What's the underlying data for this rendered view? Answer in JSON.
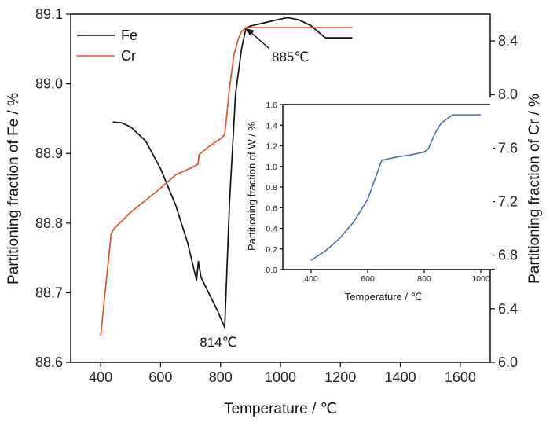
{
  "chart_data": [
    {
      "type": "line",
      "xlabel": "Temperature / ℃",
      "ylabel_left": "Partitioning fraction of Fe / %",
      "ylabel_right": "Partitioning fraction of Cr / %",
      "xlim": [
        300,
        1700
      ],
      "xticks": [
        400,
        600,
        800,
        1000,
        1200,
        1400,
        1600
      ],
      "ylim_left": [
        88.6,
        89.1
      ],
      "yticks_left": [
        88.6,
        88.7,
        88.8,
        88.9,
        89.0,
        89.1
      ],
      "ylim_right": [
        6.0,
        8.6
      ],
      "yticks_right": [
        6.0,
        6.4,
        6.8,
        7.2,
        7.6,
        8.0,
        8.4
      ],
      "legend_position": "top-left",
      "series": [
        {
          "name": "Fe",
          "axis": "left",
          "color": "#111111",
          "x": [
            440,
            470,
            500,
            550,
            600,
            650,
            690,
            720,
            726,
            735,
            760,
            790,
            814,
            830,
            850,
            870,
            885,
            900,
            950,
            1000,
            1025,
            1060,
            1100,
            1150,
            1240
          ],
          "y": [
            88.945,
            88.944,
            88.938,
            88.918,
            88.878,
            88.826,
            88.772,
            88.718,
            88.745,
            88.722,
            88.7,
            88.674,
            88.65,
            88.83,
            88.985,
            89.05,
            89.08,
            89.083,
            89.088,
            89.093,
            89.095,
            89.092,
            89.084,
            89.066,
            89.066
          ]
        },
        {
          "name": "Cr",
          "axis": "right",
          "color": "#E8512C",
          "x": [
            400,
            435,
            445,
            500,
            600,
            650,
            700,
            725,
            728,
            760,
            800,
            814,
            830,
            845,
            860,
            870,
            880,
            885,
            1240
          ],
          "y": [
            6.2,
            6.96,
            7.0,
            7.12,
            7.3,
            7.4,
            7.45,
            7.48,
            7.55,
            7.61,
            7.67,
            7.7,
            8.05,
            8.3,
            8.42,
            8.47,
            8.49,
            8.5,
            8.5
          ]
        }
      ],
      "annotations": [
        {
          "text": "814℃",
          "x": 814,
          "y": 88.65
        },
        {
          "text": "885℃",
          "x": 885,
          "y": 89.08
        }
      ]
    },
    {
      "type": "line",
      "xlabel": "Temperature / ℃",
      "ylabel": "Partitioning fraction of W / %",
      "xlim": [
        300,
        1050
      ],
      "xticks": [
        400,
        600,
        800,
        1000
      ],
      "ylim": [
        0,
        1.6
      ],
      "yticks": [
        "0.0",
        "0.2",
        "0.4",
        "0.6",
        "0.8",
        "1.0",
        "1.2",
        "1.4",
        "1.6"
      ],
      "series": [
        {
          "color": "#4A6DB8",
          "x": [
            400,
            450,
            500,
            550,
            600,
            650,
            700,
            750,
            800,
            814,
            840,
            860,
            880,
            900,
            1000
          ],
          "y": [
            0.09,
            0.18,
            0.3,
            0.46,
            0.68,
            1.06,
            1.09,
            1.11,
            1.14,
            1.17,
            1.33,
            1.42,
            1.46,
            1.5,
            1.5
          ]
        }
      ]
    }
  ],
  "colors": {
    "fe_line": "#111111",
    "cr_line": "#E8512C",
    "w_line": "#4A6DB8"
  }
}
